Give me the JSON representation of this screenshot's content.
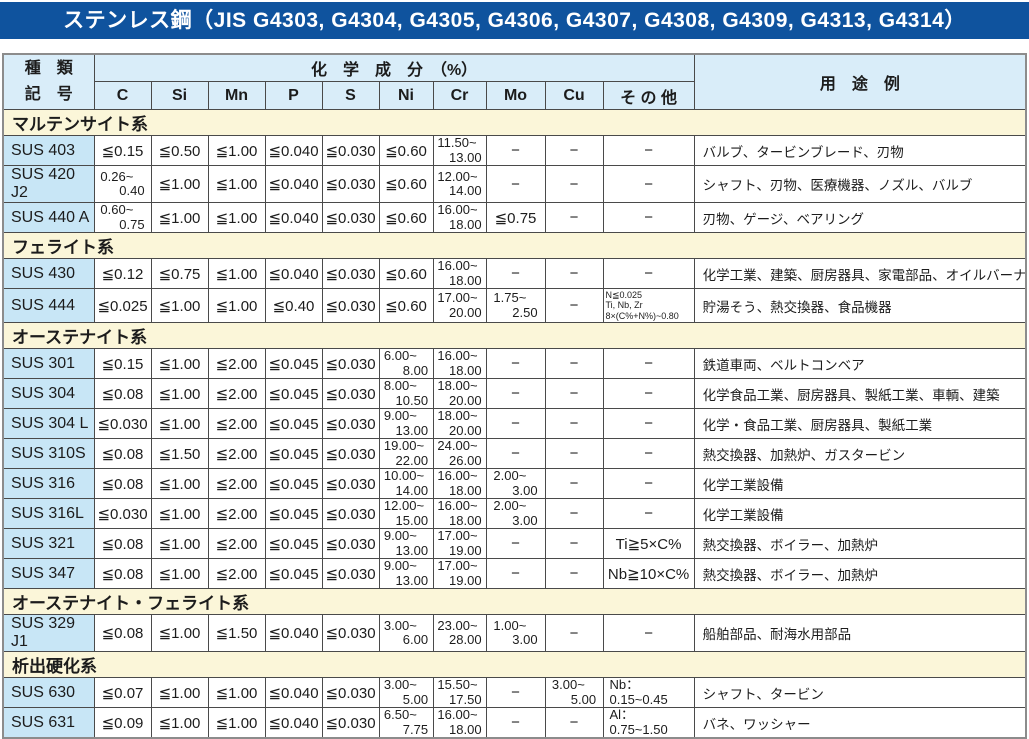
{
  "title": "ステンレス鋼（JIS G4303, G4304, G4305, G4306, G4307, G4308, G4309, G4313, G4314）",
  "colors": {
    "title_bg": "#0f539e",
    "title_text": "#ffffff",
    "header_bg": "#d9edf9",
    "grade_cell_bg": "#c8e6f6",
    "section_bg": "#fbf6d9",
    "border": "#4a4a4a"
  },
  "table": {
    "header": {
      "kind1": "種　類",
      "kind2": "記　号",
      "chem_group": "化　学　成　分　（%）",
      "usage": "用　途　例",
      "col_keys": [
        "c",
        "si",
        "mn",
        "p",
        "s",
        "ni",
        "cr",
        "mo",
        "cu",
        "other"
      ],
      "cols": [
        "C",
        "Si",
        "Mn",
        "P",
        "S",
        "Ni",
        "Cr",
        "Mo",
        "Cu",
        "そ の 他"
      ]
    },
    "sections": [
      {
        "name": "マルテンサイト系",
        "rows": [
          {
            "code": "SUS 403",
            "cells": [
              "≦0.15",
              "≦0.50",
              "≦1.00",
              "≦0.040",
              "≦0.030",
              "≦0.60",
              "11.50~\n13.00",
              "−",
              "−",
              "−"
            ],
            "use": "バルブ、タービンブレード、刃物"
          },
          {
            "code": "SUS 420 J2",
            "cells": [
              "0.26~\n0.40",
              "≦1.00",
              "≦1.00",
              "≦0.040",
              "≦0.030",
              "≦0.60",
              "12.00~\n14.00",
              "−",
              "−",
              "−"
            ],
            "use": "シャフト、刃物、医療機器、ノズル、バルブ"
          },
          {
            "code": "SUS 440 A",
            "cells": [
              "0.60~\n0.75",
              "≦1.00",
              "≦1.00",
              "≦0.040",
              "≦0.030",
              "≦0.60",
              "16.00~\n18.00",
              "≦0.75",
              "−",
              "−"
            ],
            "use": "刃物、ゲージ、ベアリング"
          }
        ]
      },
      {
        "name": "フェライト系",
        "rows": [
          {
            "code": "SUS 430",
            "cells": [
              "≦0.12",
              "≦0.75",
              "≦1.00",
              "≦0.040",
              "≦0.030",
              "≦0.60",
              "16.00~\n18.00",
              "−",
              "−",
              "−"
            ],
            "use": "化学工業、建築、厨房器具、家電部品、オイルバーナー部品"
          },
          {
            "code": "SUS 444",
            "cells": [
              "≦0.025",
              "≦1.00",
              "≦1.00",
              "≦0.40",
              "≦0.030",
              "≦0.60",
              "17.00~\n20.00",
              "1.75~\n2.50",
              "−",
              "N≦0.025\nTi, Nb, Zr\n8×(C%+N%)~0.80"
            ],
            "use": "貯湯そう、熱交換器、食品機器"
          }
        ]
      },
      {
        "name": "オーステナイト系",
        "rows": [
          {
            "code": "SUS 301",
            "cells": [
              "≦0.15",
              "≦1.00",
              "≦2.00",
              "≦0.045",
              "≦0.030",
              "6.00~\n8.00",
              "16.00~\n18.00",
              "−",
              "−",
              "−"
            ],
            "use": "鉄道車両、ベルトコンベア"
          },
          {
            "code": "SUS 304",
            "cells": [
              "≦0.08",
              "≦1.00",
              "≦2.00",
              "≦0.045",
              "≦0.030",
              "8.00~\n10.50",
              "18.00~\n20.00",
              "−",
              "−",
              "−"
            ],
            "use": "化学食品工業、厨房器具、製紙工業、車輌、建築"
          },
          {
            "code": "SUS 304 L",
            "cells": [
              "≦0.030",
              "≦1.00",
              "≦2.00",
              "≦0.045",
              "≦0.030",
              "9.00~\n13.00",
              "18.00~\n20.00",
              "−",
              "−",
              "−"
            ],
            "use": "化学・食品工業、厨房器具、製紙工業"
          },
          {
            "code": "SUS 310S",
            "cells": [
              "≦0.08",
              "≦1.50",
              "≦2.00",
              "≦0.045",
              "≦0.030",
              "19.00~\n22.00",
              "24.00~\n26.00",
              "−",
              "−",
              "−"
            ],
            "use": "熱交換器、加熱炉、ガスタービン"
          },
          {
            "code": "SUS 316",
            "cells": [
              "≦0.08",
              "≦1.00",
              "≦2.00",
              "≦0.045",
              "≦0.030",
              "10.00~\n14.00",
              "16.00~\n18.00",
              "2.00~\n3.00",
              "−",
              "−"
            ],
            "use": "化学工業設備"
          },
          {
            "code": "SUS 316L",
            "cells": [
              "≦0.030",
              "≦1.00",
              "≦2.00",
              "≦0.045",
              "≦0.030",
              "12.00~\n15.00",
              "16.00~\n18.00",
              "2.00~\n3.00",
              "−",
              "−"
            ],
            "use": "化学工業設備"
          },
          {
            "code": "SUS 321",
            "cells": [
              "≦0.08",
              "≦1.00",
              "≦2.00",
              "≦0.045",
              "≦0.030",
              "9.00~\n13.00",
              "17.00~\n19.00",
              "−",
              "−",
              "Ti≧5×C%"
            ],
            "use": "熱交換器、ボイラー、加熱炉"
          },
          {
            "code": "SUS 347",
            "cells": [
              "≦0.08",
              "≦1.00",
              "≦2.00",
              "≦0.045",
              "≦0.030",
              "9.00~\n13.00",
              "17.00~\n19.00",
              "−",
              "−",
              "Nb≧10×C%"
            ],
            "use": "熱交換器、ボイラー、加熱炉"
          }
        ]
      },
      {
        "name": "オーステナイト・フェライト系",
        "rows": [
          {
            "code": "SUS 329 J1",
            "cells": [
              "≦0.08",
              "≦1.00",
              "≦1.50",
              "≦0.040",
              "≦0.030",
              "3.00~\n6.00",
              "23.00~\n28.00",
              "1.00~\n3.00",
              "−",
              "−"
            ],
            "use": "船舶部品、耐海水用部品"
          }
        ]
      },
      {
        "name": "析出硬化系",
        "rows": [
          {
            "code": "SUS 630",
            "cells": [
              "≦0.07",
              "≦1.00",
              "≦1.00",
              "≦0.040",
              "≦0.030",
              "3.00~\n5.00",
              "15.50~\n17.50",
              "−",
              "3.00~\n5.00",
              "Nb：\n0.15~0.45"
            ],
            "use": "シャフト、タービン"
          },
          {
            "code": "SUS 631",
            "cells": [
              "≦0.09",
              "≦1.00",
              "≦1.00",
              "≦0.040",
              "≦0.030",
              "6.50~\n7.75",
              "16.00~\n18.00",
              "−",
              "−",
              "Al：\n0.75~1.50"
            ],
            "use": "バネ、ワッシャー"
          }
        ]
      }
    ]
  }
}
